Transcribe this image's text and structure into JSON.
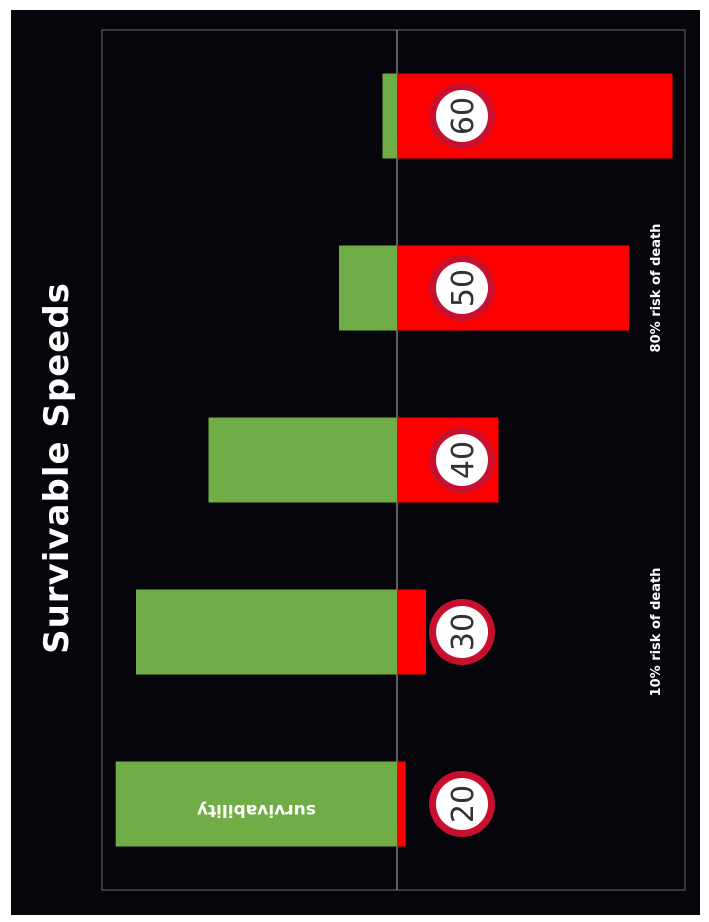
{
  "chart_data": {
    "type": "bar",
    "title": "Survivable Speeds",
    "categories": [
      "20",
      "30",
      "40",
      "50",
      "60"
    ],
    "series": [
      {
        "name": "survivability",
        "values": [
          97,
          90,
          65,
          20,
          5
        ],
        "color": "#70ad47"
      },
      {
        "name": "",
        "values": [
          3,
          10,
          35,
          80,
          95
        ],
        "color": "#ff0000"
      }
    ],
    "bar_inner_label": "survivability",
    "annotations": [
      {
        "category": "30",
        "text": "10% risk of death"
      },
      {
        "category": "50",
        "text": "80% risk of death"
      }
    ],
    "ylim": [
      0,
      100
    ],
    "grid": false,
    "legend": "none",
    "orientation": "rotated 90° clockwise"
  },
  "colors": {
    "background": "#05050b",
    "page": "#ffffff",
    "survive": "#70ad47",
    "death": "#ff0000",
    "sign_ring": "#c8102e",
    "sign_fill": "#ffffff"
  }
}
